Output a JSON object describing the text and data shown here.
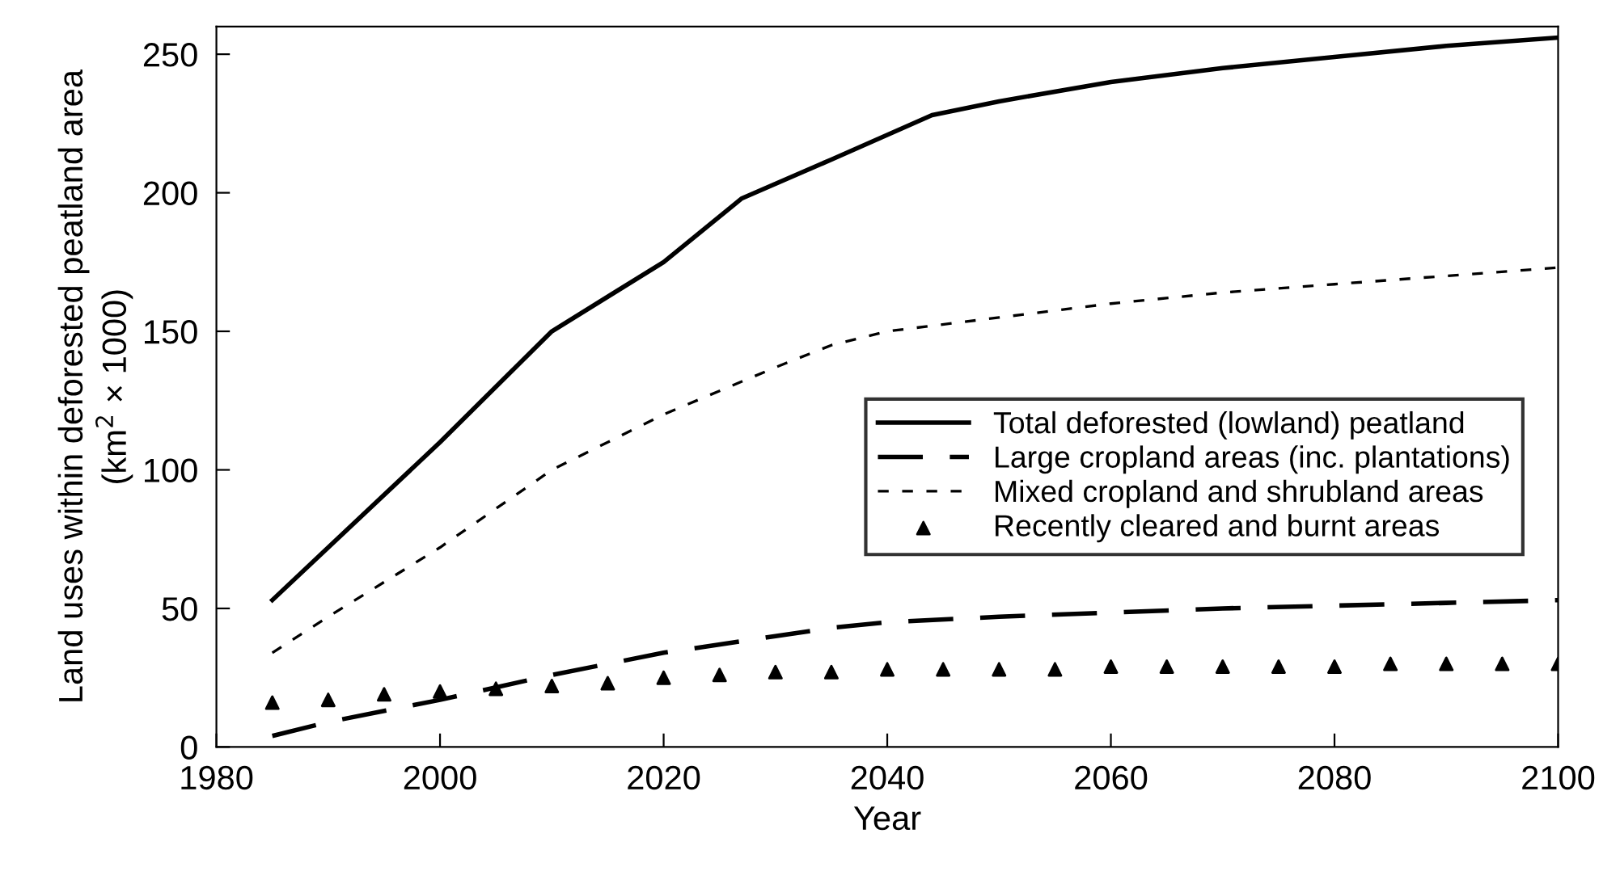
{
  "chart_data": {
    "type": "line",
    "xlabel": "Year",
    "ylabel": "Land uses within deforested peatland area\n(km$^{2}$ × 1000)",
    "xlim": [
      1980,
      2100
    ],
    "xticks": [
      1980,
      2000,
      2020,
      2040,
      2060,
      2080,
      2100
    ],
    "ylim": [
      0,
      260
    ],
    "yticks": [
      0,
      50,
      100,
      150,
      200,
      250
    ],
    "grid": false,
    "legend": "right",
    "series": [
      {
        "name": "Total deforested (lowland) peatland",
        "color": "#000000",
        "line_style": "solid",
        "x": [
          1985,
          1990,
          2000,
          2010,
          2020,
          2027,
          2035,
          2044,
          2050,
          2060,
          2070,
          2080,
          2090,
          2100
        ],
        "values": [
          53,
          72,
          110,
          150,
          175,
          198,
          212,
          228,
          233,
          240,
          245,
          249,
          253,
          256
        ]
      },
      {
        "name": "Large cropland areas (inc. plantations)",
        "color": "#000000",
        "line_style": "longdash",
        "x": [
          1985,
          1990,
          2000,
          2010,
          2020,
          2030,
          2035,
          2040,
          2050,
          2060,
          2070,
          2080,
          2090,
          2100
        ],
        "values": [
          4,
          9,
          17,
          26,
          34,
          40,
          43,
          45,
          47,
          48.5,
          50,
          51,
          52,
          53
        ]
      },
      {
        "name": "Mixed cropland and shrubland areas",
        "color": "#000000",
        "line_style": "dashed",
        "x": [
          1985,
          1990,
          2000,
          2010,
          2020,
          2030,
          2035,
          2040,
          2050,
          2060,
          2070,
          2080,
          2090,
          2100
        ],
        "values": [
          34,
          47,
          72,
          100,
          120,
          137,
          145,
          150,
          155,
          160,
          164,
          167,
          170,
          173
        ]
      },
      {
        "name": "Recently cleared and burnt areas",
        "color": "#000000",
        "type": "scatter",
        "marker": "triangle",
        "x": [
          1985,
          1990,
          1995,
          2000,
          2005,
          2010,
          2015,
          2020,
          2025,
          2030,
          2035,
          2040,
          2045,
          2050,
          2055,
          2060,
          2065,
          2070,
          2075,
          2080,
          2085,
          2090,
          2095,
          2100
        ],
        "values": [
          16,
          17,
          19,
          20,
          21,
          22,
          23,
          25,
          26,
          27,
          27,
          28,
          28,
          28,
          28,
          29,
          29,
          29,
          29,
          29,
          30,
          30,
          30,
          30
        ]
      }
    ]
  }
}
